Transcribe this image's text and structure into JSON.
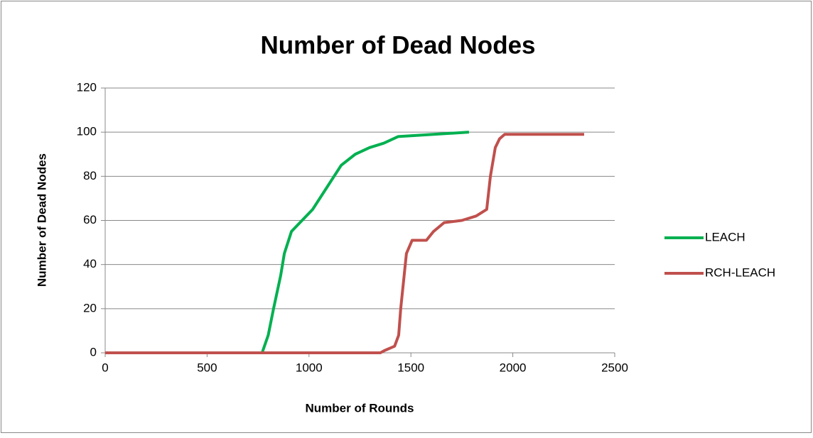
{
  "chart_data": {
    "type": "line",
    "title": "Number of Dead Nodes",
    "x_label": "Number of Rounds",
    "y_label": "Number of Dead Nodes",
    "xlim": [
      0,
      2500
    ],
    "xticks": [
      0,
      500,
      1000,
      1500,
      2000,
      2500
    ],
    "ylim": [
      0,
      120
    ],
    "yticks": [
      0,
      20,
      40,
      60,
      80,
      100,
      120
    ],
    "grid": true,
    "legend": "right",
    "series": [
      {
        "name": "LEACH",
        "color": "#00b050",
        "x": [
          0,
          770,
          800,
          826,
          861,
          879,
          914,
          966,
          1018,
          1088,
          1158,
          1227,
          1297,
          1367,
          1437,
          1611,
          1785
        ],
        "values": [
          0,
          0,
          8,
          20,
          35,
          45,
          55,
          60,
          65,
          75,
          85,
          90,
          93,
          95,
          98,
          99,
          100
        ]
      },
      {
        "name": "RCH-LEACH",
        "color": "#c0504d",
        "x": [
          0,
          1350,
          1370,
          1420,
          1440,
          1450,
          1478,
          1506,
          1576,
          1611,
          1663,
          1750,
          1820,
          1872,
          1890,
          1914,
          1935,
          1960,
          2350
        ],
        "values": [
          0,
          0,
          1,
          3,
          8,
          20,
          45,
          51,
          51,
          55,
          59,
          60,
          62,
          65,
          80,
          93,
          97,
          99,
          99
        ]
      }
    ]
  }
}
